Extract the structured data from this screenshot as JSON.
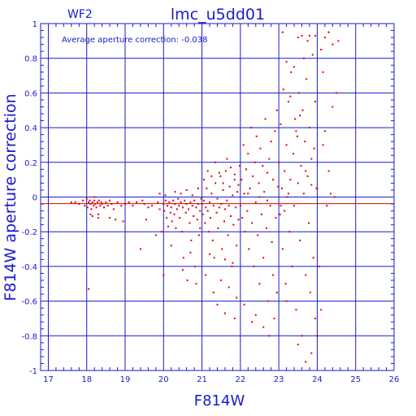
{
  "chart_data": {
    "type": "scatter",
    "title": "lmc_u5dd01",
    "corner_label": "WF2",
    "annotation": "Average aperture correction: -0.038",
    "xlabel": "F814W",
    "ylabel": "F814W aperture correction",
    "xlim": [
      16.8,
      26
    ],
    "ylim": [
      -1,
      1
    ],
    "x_ticks": [
      17,
      18,
      19,
      20,
      21,
      22,
      23,
      24,
      25,
      26
    ],
    "y_ticks": [
      -1,
      -0.8,
      -0.6,
      -0.4,
      -0.2,
      0,
      0.2,
      0.4,
      0.6,
      0.8,
      1
    ],
    "x_tick_labels": [
      "17",
      "18",
      "19",
      "20",
      "21",
      "22",
      "23",
      "24",
      "25",
      "26"
    ],
    "y_tick_labels": [
      "-1",
      "-0.8",
      "-0.6",
      "-0.4",
      "-0.2",
      "0",
      "0.2",
      "0.4",
      "0.6",
      "0.8",
      "1"
    ],
    "grid": true,
    "average_line_y": -0.038,
    "zero_line_y": 0,
    "colors": {
      "axes": "#1a1acc",
      "points": "#e00000",
      "average_line": "#e00000",
      "background": "#ffffff"
    },
    "points": [
      [
        17.6,
        -0.03
      ],
      [
        17.7,
        -0.03
      ],
      [
        17.8,
        -0.04
      ],
      [
        17.9,
        -0.02
      ],
      [
        17.95,
        -0.05
      ],
      [
        18.0,
        -0.01
      ],
      [
        18.02,
        -0.06
      ],
      [
        18.05,
        -0.03
      ],
      [
        18.08,
        -0.02
      ],
      [
        18.1,
        -0.04
      ],
      [
        18.12,
        -0.07
      ],
      [
        18.15,
        -0.03
      ],
      [
        18.18,
        -0.05
      ],
      [
        18.2,
        -0.02
      ],
      [
        18.22,
        -0.04
      ],
      [
        18.25,
        -0.06
      ],
      [
        18.28,
        -0.03
      ],
      [
        18.3,
        -0.1
      ],
      [
        18.32,
        -0.02
      ],
      [
        18.35,
        -0.05
      ],
      [
        18.38,
        -0.03
      ],
      [
        18.4,
        -0.04
      ],
      [
        18.45,
        -0.06
      ],
      [
        18.5,
        -0.03
      ],
      [
        18.55,
        -0.05
      ],
      [
        18.6,
        -0.02
      ],
      [
        18.65,
        -0.04
      ],
      [
        18.7,
        -0.07
      ],
      [
        18.75,
        -0.13
      ],
      [
        18.8,
        -0.03
      ],
      [
        18.9,
        -0.05
      ],
      [
        19.0,
        -0.04
      ],
      [
        19.1,
        -0.03
      ],
      [
        19.2,
        -0.05
      ],
      [
        18.1,
        -0.1
      ],
      [
        18.15,
        -0.11
      ],
      [
        18.05,
        -0.53
      ],
      [
        18.2,
        -0.0
      ],
      [
        18.3,
        -0.12
      ],
      [
        18.6,
        -0.12
      ],
      [
        18.95,
        -0.14
      ],
      [
        19.3,
        -0.03
      ],
      [
        19.4,
        -0.3
      ],
      [
        19.45,
        -0.02
      ],
      [
        19.5,
        -0.04
      ],
      [
        19.55,
        -0.13
      ],
      [
        19.6,
        -0.06
      ],
      [
        19.7,
        -0.05
      ],
      [
        19.8,
        -0.22
      ],
      [
        19.85,
        -0.03
      ],
      [
        19.9,
        -0.07
      ],
      [
        19.95,
        -0.2
      ],
      [
        20.0,
        -0.04
      ],
      [
        20.02,
        -0.08
      ],
      [
        20.05,
        -0.02
      ],
      [
        20.08,
        -0.12
      ],
      [
        20.1,
        -0.05
      ],
      [
        20.12,
        -0.17
      ],
      [
        20.15,
        -0.03
      ],
      [
        20.18,
        -0.09
      ],
      [
        20.2,
        -0.06
      ],
      [
        20.22,
        -0.14
      ],
      [
        20.25,
        -0.02
      ],
      [
        20.28,
        -0.1
      ],
      [
        20.3,
        -0.04
      ],
      [
        20.32,
        -0.18
      ],
      [
        20.35,
        -0.07
      ],
      [
        20.38,
        -0.01
      ],
      [
        20.4,
        -0.05
      ],
      [
        20.42,
        -0.12
      ],
      [
        20.45,
        -0.03
      ],
      [
        20.48,
        -0.2
      ],
      [
        20.5,
        -0.06
      ],
      [
        20.52,
        -0.35
      ],
      [
        20.55,
        -0.02
      ],
      [
        20.58,
        -0.09
      ],
      [
        20.6,
        -0.04
      ],
      [
        20.62,
        -0.48
      ],
      [
        20.65,
        -0.07
      ],
      [
        20.68,
        -0.15
      ],
      [
        20.7,
        -0.03
      ],
      [
        20.72,
        -0.25
      ],
      [
        20.75,
        -0.05
      ],
      [
        20.78,
        -0.11
      ],
      [
        20.8,
        -0.02
      ],
      [
        20.82,
        -0.4
      ],
      [
        20.85,
        -0.06
      ],
      [
        20.88,
        -0.13
      ],
      [
        20.9,
        -0.04
      ],
      [
        20.92,
        -0.22
      ],
      [
        20.95,
        -0.08
      ],
      [
        20.98,
        -0.01
      ],
      [
        19.9,
        0.02
      ],
      [
        20.05,
        0.01
      ],
      [
        20.3,
        0.03
      ],
      [
        20.45,
        0.02
      ],
      [
        20.6,
        0.04
      ],
      [
        20.75,
        0.01
      ],
      [
        20.9,
        0.05
      ],
      [
        20.0,
        -0.45
      ],
      [
        20.2,
        -0.28
      ],
      [
        20.5,
        -0.42
      ],
      [
        20.7,
        -0.32
      ],
      [
        20.85,
        -0.5
      ],
      [
        20.95,
        -0.18
      ],
      [
        21.0,
        -0.04
      ],
      [
        21.02,
        -0.1
      ],
      [
        21.05,
        -0.02
      ],
      [
        21.08,
        -0.15
      ],
      [
        21.1,
        -0.06
      ],
      [
        21.12,
        0.05
      ],
      [
        21.15,
        -0.08
      ],
      [
        21.18,
        -0.2
      ],
      [
        21.2,
        -0.03
      ],
      [
        21.22,
        -0.12
      ],
      [
        21.25,
        0.02
      ],
      [
        21.28,
        -0.25
      ],
      [
        21.3,
        -0.05
      ],
      [
        21.32,
        -0.35
      ],
      [
        21.35,
        0.08
      ],
      [
        21.38,
        -0.09
      ],
      [
        21.4,
        -0.01
      ],
      [
        21.42,
        -0.18
      ],
      [
        21.45,
        -0.06
      ],
      [
        21.48,
        0.12
      ],
      [
        21.5,
        -0.04
      ],
      [
        21.52,
        -0.3
      ],
      [
        21.55,
        0.04
      ],
      [
        21.58,
        -0.14
      ],
      [
        21.6,
        -0.07
      ],
      [
        21.62,
        0.15
      ],
      [
        21.65,
        -0.02
      ],
      [
        21.68,
        -0.22
      ],
      [
        21.7,
        -0.05
      ],
      [
        21.72,
        0.06
      ],
      [
        21.75,
        -0.11
      ],
      [
        21.78,
        -0.4
      ],
      [
        21.8,
        0.01
      ],
      [
        21.82,
        -0.16
      ],
      [
        21.85,
        0.1
      ],
      [
        21.88,
        -0.06
      ],
      [
        21.9,
        -0.28
      ],
      [
        21.92,
        0.03
      ],
      [
        21.95,
        -0.13
      ],
      [
        21.98,
        0.18
      ],
      [
        21.05,
        0.1
      ],
      [
        21.15,
        0.15
      ],
      [
        21.25,
        0.12
      ],
      [
        21.35,
        0.2
      ],
      [
        21.45,
        0.14
      ],
      [
        21.55,
        0.08
      ],
      [
        21.65,
        0.22
      ],
      [
        21.75,
        0.17
      ],
      [
        21.85,
        0.13
      ],
      [
        21.95,
        0.07
      ],
      [
        21.1,
        -0.45
      ],
      [
        21.3,
        -0.55
      ],
      [
        21.4,
        -0.62
      ],
      [
        21.5,
        -0.48
      ],
      [
        21.6,
        -0.67
      ],
      [
        21.7,
        -0.52
      ],
      [
        21.8,
        -0.38
      ],
      [
        21.9,
        -0.58
      ],
      [
        21.2,
        -0.33
      ],
      [
        21.6,
        -0.36
      ],
      [
        21.85,
        -0.7
      ],
      [
        22.0,
        -0.05
      ],
      [
        22.03,
        0.1
      ],
      [
        22.05,
        -0.12
      ],
      [
        22.08,
        0.3
      ],
      [
        22.1,
        0.02
      ],
      [
        22.12,
        -0.2
      ],
      [
        22.15,
        0.16
      ],
      [
        22.18,
        -0.08
      ],
      [
        22.2,
        0.25
      ],
      [
        22.22,
        -0.3
      ],
      [
        22.25,
        0.05
      ],
      [
        22.28,
        0.4
      ],
      [
        22.3,
        -0.15
      ],
      [
        22.32,
        0.12
      ],
      [
        22.35,
        -0.4
      ],
      [
        22.38,
        0.2
      ],
      [
        22.4,
        -0.03
      ],
      [
        22.42,
        0.35
      ],
      [
        22.45,
        -0.22
      ],
      [
        22.48,
        0.08
      ],
      [
        22.5,
        -0.5
      ],
      [
        22.52,
        0.28
      ],
      [
        22.55,
        -0.1
      ],
      [
        22.58,
        0.18
      ],
      [
        22.6,
        -0.35
      ],
      [
        22.62,
        0.03
      ],
      [
        22.65,
        0.45
      ],
      [
        22.68,
        -0.18
      ],
      [
        22.7,
        0.14
      ],
      [
        22.72,
        -0.6
      ],
      [
        22.75,
        0.22
      ],
      [
        22.78,
        -0.05
      ],
      [
        22.8,
        0.32
      ],
      [
        22.82,
        -0.26
      ],
      [
        22.85,
        0.1
      ],
      [
        22.88,
        -0.7
      ],
      [
        22.9,
        0.38
      ],
      [
        22.92,
        -0.12
      ],
      [
        22.95,
        0.5
      ],
      [
        22.98,
        0.06
      ],
      [
        22.1,
        -0.62
      ],
      [
        22.3,
        -0.72
      ],
      [
        22.4,
        -0.68
      ],
      [
        22.6,
        -0.75
      ],
      [
        22.75,
        -0.8
      ],
      [
        22.85,
        -0.45
      ],
      [
        22.95,
        -0.55
      ],
      [
        22.2,
        0.02
      ],
      [
        22.5,
        0.0
      ],
      [
        22.7,
        -0.02
      ],
      [
        23.0,
        0.2
      ],
      [
        23.03,
        -0.1
      ],
      [
        23.05,
        0.42
      ],
      [
        23.08,
        0.05
      ],
      [
        23.1,
        -0.3
      ],
      [
        23.12,
        0.62
      ],
      [
        23.15,
        0.15
      ],
      [
        23.18,
        -0.5
      ],
      [
        23.2,
        0.3
      ],
      [
        23.22,
        0.0
      ],
      [
        23.25,
        0.55
      ],
      [
        23.28,
        -0.2
      ],
      [
        23.3,
        0.1
      ],
      [
        23.32,
        0.72
      ],
      [
        23.35,
        -0.4
      ],
      [
        23.38,
        0.25
      ],
      [
        23.4,
        -0.05
      ],
      [
        23.42,
        0.45
      ],
      [
        23.45,
        -0.65
      ],
      [
        23.48,
        0.35
      ],
      [
        23.5,
        0.08
      ],
      [
        23.52,
        0.6
      ],
      [
        23.55,
        -0.25
      ],
      [
        23.58,
        0.18
      ],
      [
        23.6,
        -0.8
      ],
      [
        23.62,
        0.5
      ],
      [
        23.65,
        0.02
      ],
      [
        23.68,
        0.32
      ],
      [
        23.7,
        -0.45
      ],
      [
        23.72,
        0.68
      ],
      [
        23.75,
        0.12
      ],
      [
        23.78,
        -0.15
      ],
      [
        23.8,
        0.4
      ],
      [
        23.82,
        -0.55
      ],
      [
        23.85,
        0.22
      ],
      [
        23.88,
        0.82
      ],
      [
        23.9,
        -0.35
      ],
      [
        23.92,
        0.28
      ],
      [
        23.95,
        -0.7
      ],
      [
        23.98,
        0.05
      ],
      [
        23.1,
        0.95
      ],
      [
        23.5,
        0.92
      ],
      [
        23.6,
        0.93
      ],
      [
        23.8,
        0.93
      ],
      [
        23.95,
        0.93
      ],
      [
        23.4,
        0.75
      ],
      [
        23.3,
        0.58
      ],
      [
        23.2,
        0.78
      ],
      [
        23.65,
        0.8
      ],
      [
        23.75,
        0.9
      ],
      [
        23.05,
        -0.05
      ],
      [
        23.15,
        -0.08
      ],
      [
        23.25,
        0.02
      ],
      [
        23.45,
        0.38
      ],
      [
        23.55,
        0.47
      ],
      [
        23.7,
        0.15
      ],
      [
        23.85,
        0.07
      ],
      [
        23.95,
        0.55
      ],
      [
        23.2,
        -0.6
      ],
      [
        23.5,
        -0.85
      ],
      [
        23.7,
        -0.95
      ],
      [
        23.85,
        -0.9
      ],
      [
        24.0,
        0.05
      ],
      [
        24.05,
        -0.4
      ],
      [
        24.1,
        0.85
      ],
      [
        24.15,
        0.3
      ],
      [
        24.2,
        0.92
      ],
      [
        24.25,
        -0.05
      ],
      [
        24.3,
        0.95
      ],
      [
        24.35,
        0.02
      ],
      [
        24.4,
        0.88
      ],
      [
        24.45,
        0.0
      ],
      [
        24.5,
        0.6
      ],
      [
        24.55,
        0.9
      ],
      [
        24.0,
        -0.8
      ],
      [
        24.1,
        -0.65
      ],
      [
        24.2,
        0.38
      ],
      [
        24.3,
        0.15
      ],
      [
        24.4,
        0.52
      ],
      [
        24.15,
        0.72
      ]
    ]
  }
}
